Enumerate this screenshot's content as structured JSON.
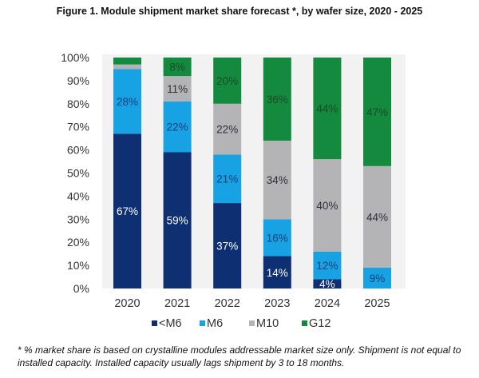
{
  "chart_data": {
    "type": "bar",
    "stacked": true,
    "title": "Figure 1. Module shipment market share forecast *, by wafer size, 2020 - 2025",
    "xlabel": "",
    "ylabel": "",
    "ylim": [
      0,
      100
    ],
    "yticks": [
      "0%",
      "10%",
      "20%",
      "30%",
      "40%",
      "50%",
      "60%",
      "70%",
      "80%",
      "90%",
      "100%"
    ],
    "categories": [
      "2020",
      "2021",
      "2022",
      "2023",
      "2024",
      "2025"
    ],
    "series": [
      {
        "name": "<M6",
        "color": "#0f2f73",
        "label_color": "#ffffff",
        "values": [
          67,
          59,
          37,
          14,
          4,
          0
        ],
        "labels": [
          "67%",
          "59%",
          "37%",
          "14%",
          "4%",
          ""
        ]
      },
      {
        "name": "M6",
        "color": "#17a2e3",
        "label_color": "#1b3f7a",
        "values": [
          28,
          22,
          21,
          16,
          12,
          9
        ],
        "labels": [
          "28%",
          "22%",
          "21%",
          "16%",
          "12%",
          "9%"
        ]
      },
      {
        "name": "M10",
        "color": "#b4b4b6",
        "label_color": "#2a2f3a",
        "values": [
          2,
          11,
          22,
          34,
          40,
          44
        ],
        "labels": [
          "",
          "11%",
          "22%",
          "34%",
          "40%",
          "44%"
        ]
      },
      {
        "name": "G12",
        "color": "#148a3f",
        "label_color": "#1b4a2a",
        "values": [
          3,
          8,
          20,
          36,
          44,
          47
        ],
        "labels": [
          "",
          "8%",
          "20%",
          "36%",
          "44%",
          "47%"
        ]
      }
    ],
    "grid": false,
    "legend": "bottom",
    "plot_background": "#f2f2f2"
  },
  "footnote": "* % market share is based on crystalline modules addressable market size only. Shipment is not equal to installed capacity. Installed capacity usually lags shipment by 3 to 18 months."
}
